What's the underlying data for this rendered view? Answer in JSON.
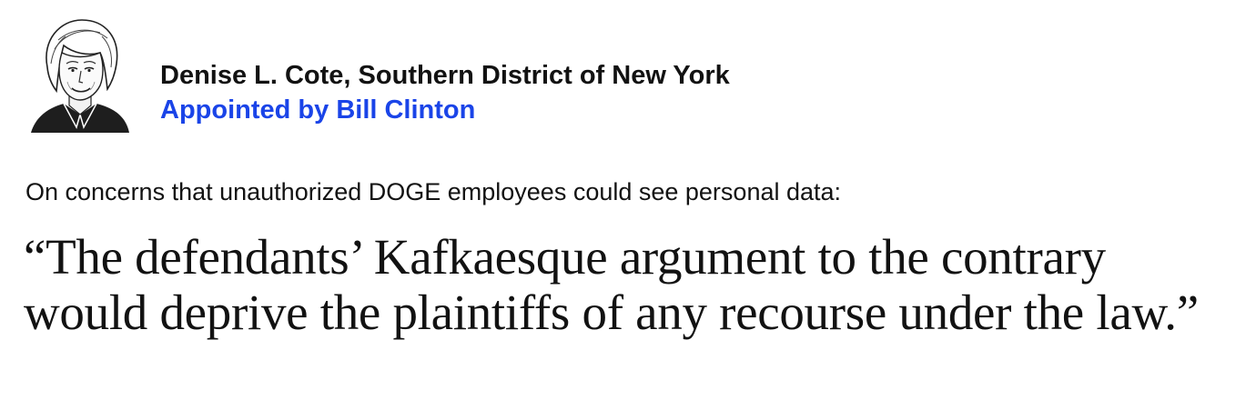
{
  "judge": {
    "portrait_icon": "judge-portrait-illustration",
    "name": "Denise L. Cote, Southern District of New York",
    "appointed": "Appointed by Bill Clinton"
  },
  "context": "On concerns that unauthorized DOGE employees could see personal data:",
  "quote": "“The defendants’ Kafkaesque argument to the contrary would deprive the plaintiffs of any recourse under the law.”",
  "colors": {
    "text": "#121212",
    "appointed_link": "#1a44e8"
  }
}
